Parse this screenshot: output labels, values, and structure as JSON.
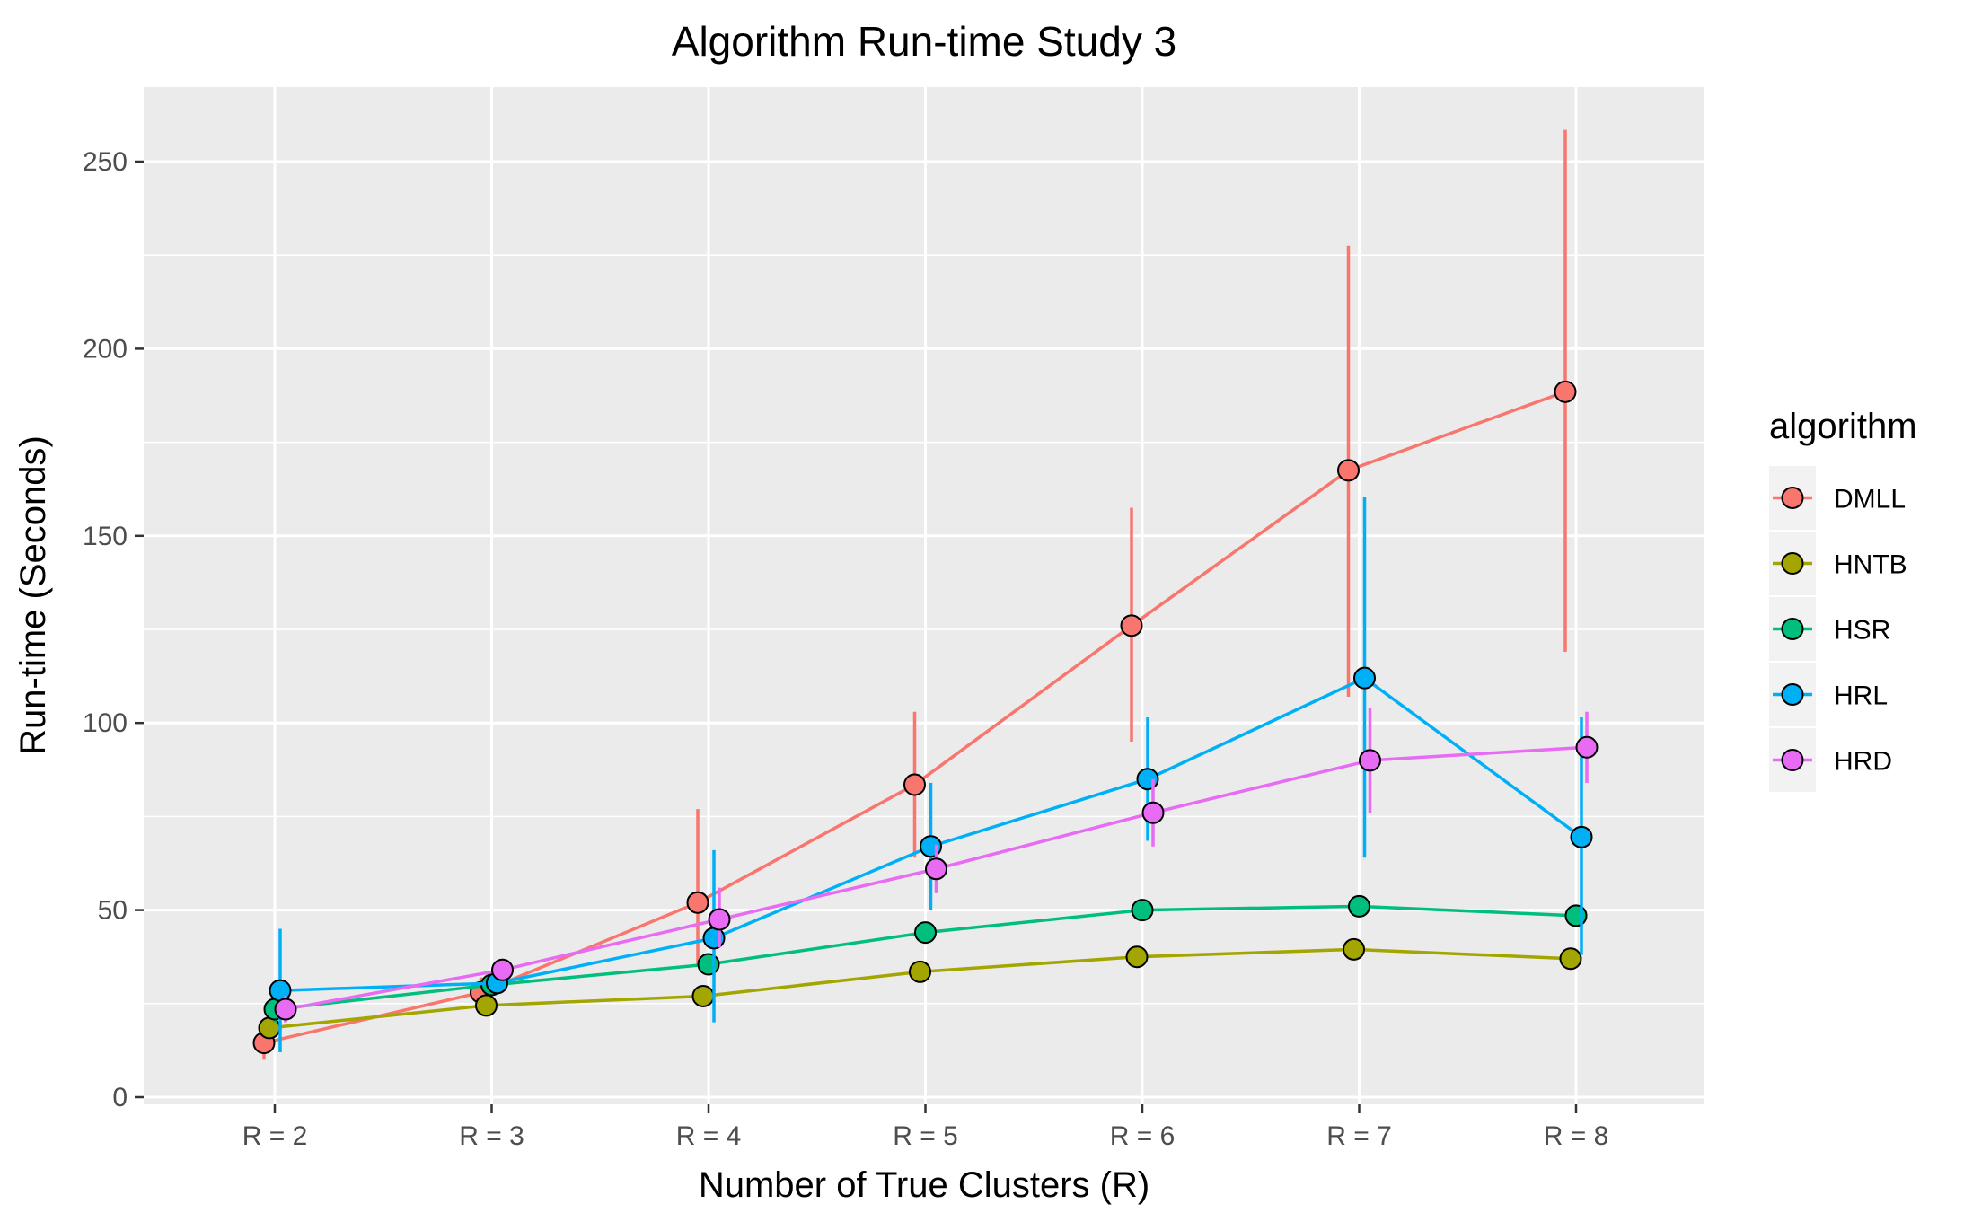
{
  "chart_data": {
    "type": "line",
    "title": "Algorithm Run-time Study 3",
    "xlabel": "Number of True Clusters (R)",
    "ylabel": "Run-time (Seconds)",
    "categories": [
      "R = 2",
      "R = 3",
      "R = 4",
      "R = 5",
      "R = 6",
      "R = 7",
      "R = 8"
    ],
    "ylim": [
      0,
      270
    ],
    "yticks": [
      0,
      50,
      100,
      150,
      200,
      250
    ],
    "ytick_labels": [
      "0",
      "50",
      "100",
      "150",
      "200",
      "250"
    ],
    "grid": true,
    "legend_title": "algorithm",
    "legend_position": "right",
    "error_bars": true,
    "series": [
      {
        "name": "DMLL",
        "color": "#F8766D",
        "values": [
          14.5,
          28,
          52,
          83.5,
          126,
          167.5,
          188.5
        ],
        "error_low": [
          10,
          25,
          35,
          64,
          95,
          107,
          119
        ],
        "error_high": [
          19,
          32,
          77,
          103,
          157.5,
          227.5,
          258.5
        ]
      },
      {
        "name": "HNTB",
        "color": "#A3A500",
        "values": [
          18.5,
          24.5,
          27,
          33.5,
          37.5,
          39.5,
          37
        ],
        "error_low": [
          16,
          23,
          25,
          31.5,
          35.5,
          38,
          35
        ],
        "error_high": [
          21,
          26,
          29,
          35.5,
          39.5,
          41,
          39
        ]
      },
      {
        "name": "HSR",
        "color": "#00BF7D",
        "values": [
          23.5,
          30,
          35.5,
          44,
          50,
          51,
          48.5
        ],
        "error_low": [
          20,
          28,
          33,
          41,
          47.5,
          49,
          46
        ],
        "error_high": [
          27,
          32,
          38,
          46.5,
          52.5,
          53,
          51
        ]
      },
      {
        "name": "HRL",
        "color": "#00B0F6",
        "values": [
          28.5,
          30.5,
          42.5,
          67,
          85,
          112,
          69.5
        ],
        "error_low": [
          12,
          27.5,
          20,
          50,
          68.5,
          64,
          38
        ],
        "error_high": [
          45,
          34,
          66,
          84,
          101.5,
          160.5,
          101.5
        ]
      },
      {
        "name": "HRD",
        "color": "#E76BF3",
        "values": [
          23.5,
          34,
          47.5,
          61,
          76,
          90,
          93.5
        ],
        "error_low": [
          20,
          31,
          40,
          54.5,
          67,
          76,
          84
        ],
        "error_high": [
          27,
          37,
          56,
          67.5,
          85,
          104,
          103
        ]
      }
    ]
  }
}
